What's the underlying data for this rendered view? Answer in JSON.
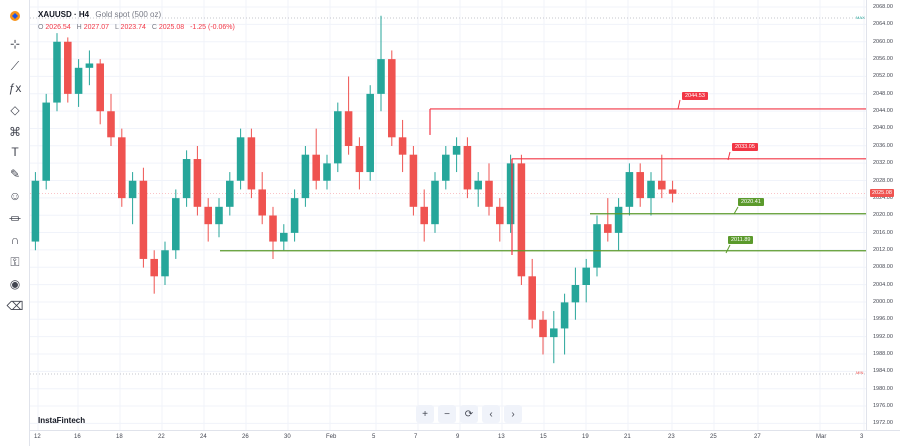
{
  "legend": {
    "symbol": "XAUUSD · H4",
    "description": "Gold spot (500 oz)",
    "open_label": "O",
    "open": "2026.54",
    "high_label": "H",
    "high": "2027.07",
    "low_label": "L",
    "low": "2023.74",
    "close_label": "C",
    "close": "2025.08",
    "change": "-1.25 (-0.06%)"
  },
  "watermark": "InstaFintech",
  "price_axis": {
    "ticks": [
      "2068.00",
      "2064.00",
      "2060.00",
      "2056.00",
      "2052.00",
      "2048.00",
      "2044.00",
      "2040.00",
      "2036.00",
      "2032.00",
      "2028.00",
      "2024.00",
      "2020.00",
      "2016.00",
      "2012.00",
      "2008.00",
      "2004.00",
      "2000.00",
      "1996.00",
      "1992.00",
      "1988.00",
      "1984.00",
      "1980.00",
      "1976.00",
      "1972.00"
    ],
    "current_price": "2025.08",
    "high_marker": "MAX",
    "low_marker": "MIN"
  },
  "time_axis": {
    "ticks": [
      "12",
      "16",
      "18",
      "22",
      "24",
      "26",
      "30",
      "Feb",
      "5",
      "7",
      "9",
      "13",
      "15",
      "19",
      "21",
      "23",
      "25",
      "27",
      "Mar",
      "3"
    ]
  },
  "levels": {
    "resistance_1": "2044.53",
    "resistance_2": "2033.05",
    "support_1": "2020.41",
    "support_2": "2011.89"
  },
  "nav": {
    "zoom_in": "+",
    "zoom_out": "−",
    "reset": "⟳",
    "back": "‹",
    "forward": "›"
  },
  "colors": {
    "up": "#26a69a",
    "down": "#ef5350",
    "resistance": "#f23645",
    "support": "#5b9a2c",
    "dotted": "#f7a1a7"
  },
  "chart_data": {
    "type": "candlestick",
    "symbol": "XAUUSD",
    "timeframe": "H4",
    "ylim": [
      1972,
      2068
    ],
    "candles": [
      [
        2014,
        2030,
        2012,
        2028
      ],
      [
        2028,
        2048,
        2026,
        2046
      ],
      [
        2046,
        2062,
        2044,
        2060
      ],
      [
        2060,
        2061,
        2046,
        2048
      ],
      [
        2048,
        2056,
        2045,
        2054
      ],
      [
        2054,
        2058,
        2050,
        2055
      ],
      [
        2055,
        2056,
        2041,
        2044
      ],
      [
        2044,
        2048,
        2036,
        2038
      ],
      [
        2038,
        2040,
        2022,
        2024
      ],
      [
        2024,
        2030,
        2018,
        2028
      ],
      [
        2028,
        2031,
        2008,
        2010
      ],
      [
        2010,
        2012,
        2002,
        2006
      ],
      [
        2006,
        2014,
        2004,
        2012
      ],
      [
        2012,
        2026,
        2010,
        2024
      ],
      [
        2024,
        2035,
        2022,
        2033
      ],
      [
        2033,
        2036,
        2020,
        2022
      ],
      [
        2022,
        2024,
        2014,
        2018
      ],
      [
        2018,
        2024,
        2015,
        2022
      ],
      [
        2022,
        2030,
        2020,
        2028
      ],
      [
        2028,
        2040,
        2026,
        2038
      ],
      [
        2038,
        2040,
        2024,
        2026
      ],
      [
        2026,
        2030,
        2018,
        2020
      ],
      [
        2020,
        2022,
        2010,
        2014
      ],
      [
        2014,
        2018,
        2012,
        2016
      ],
      [
        2016,
        2026,
        2014,
        2024
      ],
      [
        2024,
        2036,
        2022,
        2034
      ],
      [
        2034,
        2040,
        2026,
        2028
      ],
      [
        2028,
        2034,
        2026,
        2032
      ],
      [
        2032,
        2046,
        2030,
        2044
      ],
      [
        2044,
        2052,
        2034,
        2036
      ],
      [
        2036,
        2038,
        2026,
        2030
      ],
      [
        2030,
        2050,
        2028,
        2048
      ],
      [
        2048,
        2066,
        2044,
        2056
      ],
      [
        2056,
        2058,
        2036,
        2038
      ],
      [
        2038,
        2042,
        2030,
        2034
      ],
      [
        2034,
        2036,
        2020,
        2022
      ],
      [
        2022,
        2026,
        2014,
        2018
      ],
      [
        2018,
        2030,
        2016,
        2028
      ],
      [
        2028,
        2036,
        2026,
        2034
      ],
      [
        2034,
        2038,
        2030,
        2036
      ],
      [
        2036,
        2038,
        2024,
        2026
      ],
      [
        2026,
        2030,
        2022,
        2028
      ],
      [
        2028,
        2032,
        2020,
        2022
      ],
      [
        2022,
        2024,
        2014,
        2018
      ],
      [
        2018,
        2034,
        2016,
        2032
      ],
      [
        2032,
        2034,
        2004,
        2006
      ],
      [
        2006,
        2010,
        1994,
        1996
      ],
      [
        1996,
        1998,
        1988,
        1992
      ],
      [
        1992,
        1998,
        1986,
        1994
      ],
      [
        1994,
        2002,
        1988,
        2000
      ],
      [
        2000,
        2008,
        1996,
        2004
      ],
      [
        2004,
        2010,
        2000,
        2008
      ],
      [
        2008,
        2020,
        2006,
        2018
      ],
      [
        2018,
        2024,
        2014,
        2016
      ],
      [
        2016,
        2024,
        2012,
        2022
      ],
      [
        2022,
        2032,
        2020,
        2030
      ],
      [
        2030,
        2032,
        2022,
        2024
      ],
      [
        2024,
        2030,
        2020,
        2028
      ],
      [
        2028,
        2034,
        2024,
        2026
      ],
      [
        2026,
        2028,
        2023,
        2025
      ]
    ]
  }
}
